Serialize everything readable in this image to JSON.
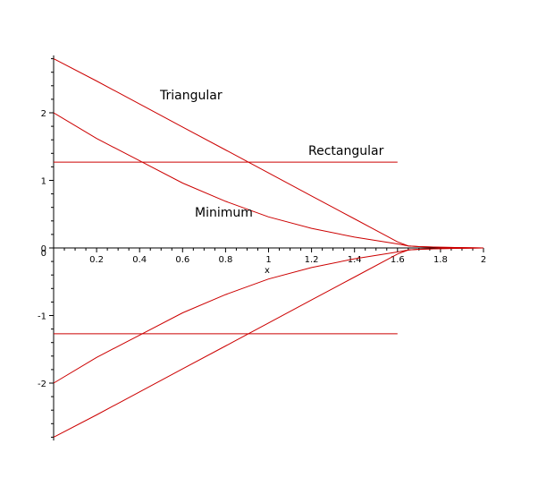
{
  "chart_data": {
    "type": "line",
    "title": "",
    "xlabel": "x",
    "ylabel": "",
    "xlim": [
      0,
      2
    ],
    "ylim": [
      -2.85,
      2.85
    ],
    "grid": false,
    "x_ticks": [
      "0",
      "0.2",
      "0.4",
      "0.6",
      "0.8",
      "1",
      "1.2",
      "1.4",
      "1.6",
      "1.8",
      "2"
    ],
    "y_ticks": [
      "-2",
      "-1",
      "0",
      "1",
      "2"
    ],
    "line_color": "#cc0000",
    "annotations": [
      "Triangular",
      "Rectangular",
      "Minimum"
    ],
    "series": [
      {
        "x": [
          0,
          0.2,
          0.4,
          0.6,
          0.8,
          1.0,
          1.2,
          1.4,
          1.6,
          1.65,
          1.7,
          1.8,
          1.9,
          2.0
        ],
        "y": [
          2.8,
          2.47,
          2.13,
          1.79,
          1.45,
          1.11,
          0.77,
          0.43,
          0.09,
          0.03,
          0.02,
          0.01,
          0.005,
          0.0
        ]
      },
      {
        "x": [
          0,
          0.2,
          0.4,
          0.6,
          0.8,
          1.0,
          1.2,
          1.4,
          1.6,
          1.65,
          1.7,
          1.8,
          1.9,
          2.0
        ],
        "y": [
          -2.8,
          -2.47,
          -2.13,
          -1.79,
          -1.45,
          -1.11,
          -0.77,
          -0.43,
          -0.09,
          -0.03,
          -0.02,
          -0.01,
          -0.005,
          0.0
        ]
      },
      {
        "x": [
          0,
          0.2,
          0.4,
          0.6,
          0.8,
          1.0,
          1.2,
          1.4,
          1.6,
          1.65,
          1.7,
          1.8,
          1.9,
          2.0
        ],
        "y": [
          2.0,
          1.62,
          1.29,
          0.96,
          0.69,
          0.46,
          0.29,
          0.16,
          0.06,
          0.03,
          0.02,
          0.01,
          0.005,
          0.0
        ]
      },
      {
        "x": [
          0,
          0.2,
          0.4,
          0.6,
          0.8,
          1.0,
          1.2,
          1.4,
          1.6,
          1.65,
          1.7,
          1.8,
          1.9,
          2.0
        ],
        "y": [
          -2.0,
          -1.62,
          -1.29,
          -0.96,
          -0.69,
          -0.46,
          -0.29,
          -0.16,
          -0.06,
          -0.03,
          -0.02,
          -0.01,
          -0.005,
          0.0
        ]
      },
      {
        "x": [
          0,
          1.6
        ],
        "y": [
          1.27,
          1.27
        ]
      },
      {
        "x": [
          0,
          1.6
        ],
        "y": [
          -1.27,
          -1.27
        ]
      }
    ]
  }
}
